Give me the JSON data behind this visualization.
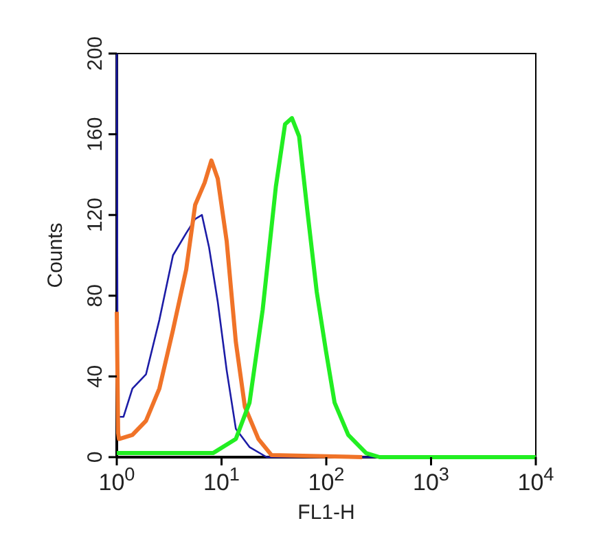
{
  "chart_data": {
    "type": "line",
    "xlabel": "FL1-H",
    "ylabel": "Counts",
    "log": "x",
    "xlim": [
      1,
      10000
    ],
    "ylim": [
      0,
      200
    ],
    "xticks": [
      {
        "value": 1,
        "label": "10$^{0}$"
      },
      {
        "value": 10,
        "label": "10$^{1}$"
      },
      {
        "value": 100,
        "label": "10$^{2}$"
      },
      {
        "value": 1000,
        "label": "10$^{3}$"
      },
      {
        "value": 10000,
        "label": "10$^{4}$"
      }
    ],
    "yticks": [
      0,
      40,
      80,
      120,
      160,
      200
    ],
    "grid": false,
    "marker": "none",
    "line_style": "solid",
    "series": [
      {
        "color": "#1c1ca6",
        "x": [
          1,
          1.02,
          1.16,
          1.41,
          1.9,
          2.55,
          3.44,
          4.6,
          5.6,
          6.5,
          7.6,
          9.2,
          11.2,
          13.7,
          18.5,
          27,
          10000
        ],
        "values": [
          200,
          20,
          20,
          34,
          41,
          68,
          100,
          111,
          118,
          120,
          104,
          77,
          43,
          14,
          5,
          0,
          0
        ]
      },
      {
        "color": "#f07328",
        "x": [
          1,
          1.03,
          1.05,
          1.41,
          1.9,
          2.55,
          3.44,
          4.6,
          5.6,
          6.9,
          8,
          9.2,
          11.2,
          13.7,
          16.7,
          22.5,
          30,
          220
        ],
        "values": [
          72,
          12,
          9,
          11,
          18,
          34,
          63,
          93,
          125,
          136,
          147,
          138,
          107,
          57,
          25,
          9,
          1,
          0
        ]
      },
      {
        "color": "#22ee22",
        "x": [
          1,
          8.3,
          13.7,
          18.5,
          24.7,
          33,
          40.4,
          47,
          55,
          66,
          81,
          99,
          120,
          162,
          240,
          323,
          10000
        ],
        "values": [
          2,
          2,
          9,
          27,
          73,
          134,
          165,
          168,
          159,
          122,
          82,
          53,
          27,
          11,
          2,
          0,
          0
        ]
      }
    ]
  }
}
